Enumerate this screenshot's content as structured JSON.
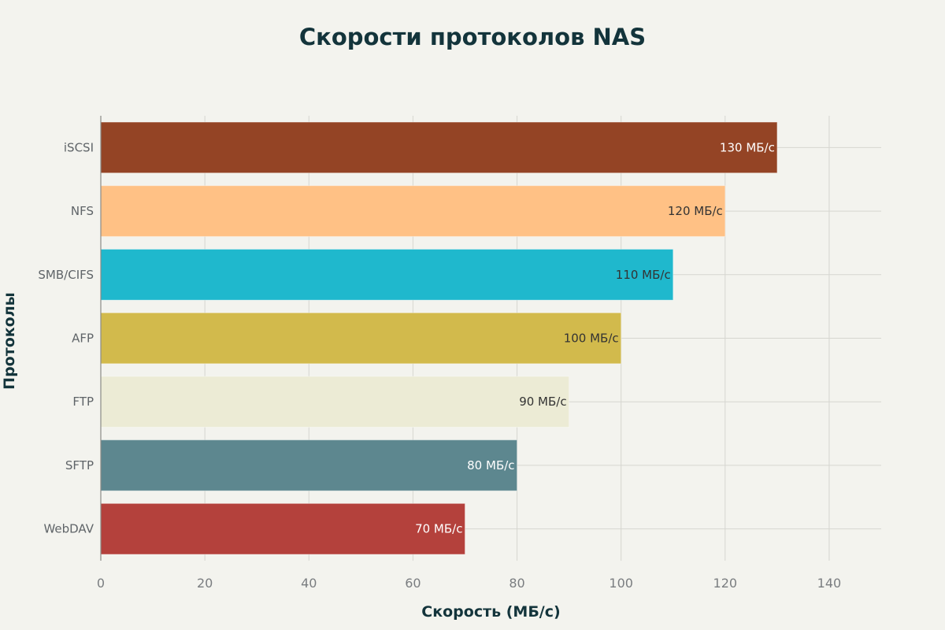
{
  "chart_data": {
    "type": "bar",
    "orientation": "horizontal",
    "title": "Скорости протоколов NAS",
    "xlabel": "Скорость (МБ/с)",
    "ylabel": "Протоколы",
    "categories": [
      "iSCSI",
      "NFS",
      "SMB/CIFS",
      "AFP",
      "FTP",
      "SFTP",
      "WebDAV"
    ],
    "values": [
      130,
      120,
      110,
      100,
      90,
      80,
      70
    ],
    "data_labels": [
      "130 МБ/с",
      "120 МБ/с",
      "110 МБ/с",
      "100 МБ/с",
      "90 МБ/с",
      "80 МБ/с",
      "70 МБ/с"
    ],
    "colors": [
      "#944425",
      "#ffc185",
      "#1fb8cd",
      "#d2ba4c",
      "#ecebd5",
      "#5d878f",
      "#b4413c"
    ],
    "label_colors": [
      "#ffffff",
      "#333333",
      "#333333",
      "#333333",
      "#333333",
      "#ffffff",
      "#ffffff"
    ],
    "xlim": [
      0,
      150
    ],
    "xticks": [
      0,
      20,
      40,
      60,
      80,
      100,
      120,
      140
    ],
    "grid": true,
    "legend": "none"
  }
}
